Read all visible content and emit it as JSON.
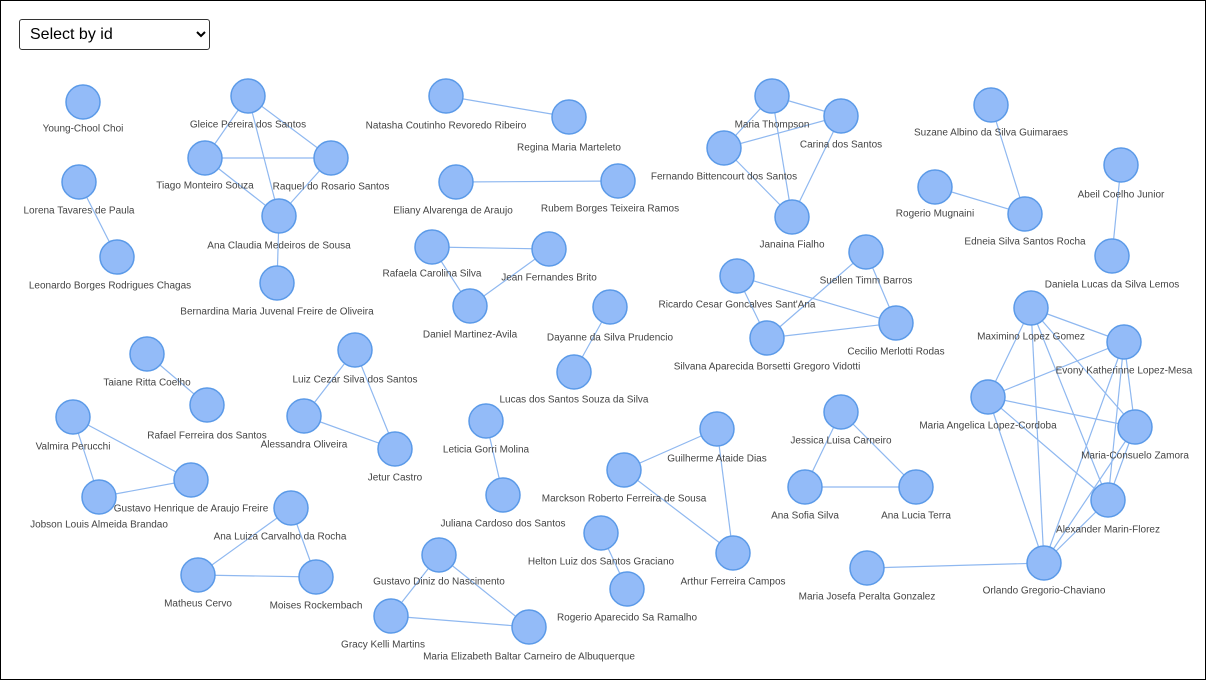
{
  "select": {
    "label": "Select by id"
  },
  "nodes": [
    {
      "label": "Young-Chool Choi"
    },
    {
      "label": "Lorena Tavares de Paula"
    },
    {
      "label": "Leonardo Borges Rodrigues Chagas"
    },
    {
      "label": "Gleice Pereira dos Santos"
    },
    {
      "label": "Tiago Monteiro Souza"
    },
    {
      "label": "Raquel do Rosario Santos"
    },
    {
      "label": "Ana Claudia Medeiros de Sousa"
    },
    {
      "label": "Bernardina Maria Juvenal Freire de Oliveira"
    },
    {
      "label": "Natasha Coutinho Revoredo Ribeiro"
    },
    {
      "label": "Regina Maria Marteleto"
    },
    {
      "label": "Eliany Alvarenga de Araujo"
    },
    {
      "label": "Rubem Borges Teixeira Ramos"
    },
    {
      "label": "Rafaela Carolina Silva"
    },
    {
      "label": "Jean Fernandes Brito"
    },
    {
      "label": "Daniel Martinez-Avila"
    },
    {
      "label": "Dayanne da Silva Prudencio"
    },
    {
      "label": "Lucas dos Santos Souza da Silva"
    },
    {
      "label": "Maria Thompson"
    },
    {
      "label": "Carina dos Santos"
    },
    {
      "label": "Fernando Bittencourt dos Santos"
    },
    {
      "label": "Janaina Fialho"
    },
    {
      "label": "Suzane Albino da Silva Guimaraes"
    },
    {
      "label": "Rogerio Mugnaini"
    },
    {
      "label": "Edneia Silva Santos Rocha"
    },
    {
      "label": "Abeil Coelho Junior"
    },
    {
      "label": "Daniela Lucas da Silva Lemos"
    },
    {
      "label": "Suellen Timm Barros"
    },
    {
      "label": "Ricardo Cesar Goncalves Sant'Ana"
    },
    {
      "label": "Cecilio Merlotti Rodas"
    },
    {
      "label": "Silvana Aparecida Borsetti Gregoro Vidotti"
    },
    {
      "label": "Maximino Lopez Gomez"
    },
    {
      "label": "Evony Katherinne Lopez-Mesa"
    },
    {
      "label": "Maria Angelica Lopez-Cordoba"
    },
    {
      "label": "Maria-Consuelo Zamora"
    },
    {
      "label": "Alexander Marin-Florez"
    },
    {
      "label": "Orlando Gregorio-Chaviano"
    },
    {
      "label": "Maria Josefa Peralta Gonzalez"
    },
    {
      "label": "Taiane Ritta Coelho"
    },
    {
      "label": "Rafael Ferreira dos Santos"
    },
    {
      "label": "Valmira Perucchi"
    },
    {
      "label": "Gustavo Henrique de Araujo Freire"
    },
    {
      "label": "Jobson Louis Almeida Brandao"
    },
    {
      "label": "Luiz Cezar Silva dos Santos"
    },
    {
      "label": "Alessandra Oliveira"
    },
    {
      "label": "Jetur Castro"
    },
    {
      "label": "Leticia Gorri Molina"
    },
    {
      "label": "Juliana Cardoso dos Santos"
    },
    {
      "label": "Ana Luiza Carvalho da Rocha"
    },
    {
      "label": "Matheus Cervo"
    },
    {
      "label": "Moises Rockembach"
    },
    {
      "label": "Gustavo Diniz do Nascimento"
    },
    {
      "label": "Gracy Kelli Martins"
    },
    {
      "label": "Maria Elizabeth Baltar Carneiro de Albuquerque"
    },
    {
      "label": "Guilherme Ataide Dias"
    },
    {
      "label": "Marckson Roberto Ferreira de Sousa"
    },
    {
      "label": "Arthur Ferreira Campos"
    },
    {
      "label": "Helton Luiz dos Santos Graciano"
    },
    {
      "label": "Rogerio Aparecido Sa Ramalho"
    },
    {
      "label": "Jessica Luisa Carneiro"
    },
    {
      "label": "Ana Sofia Silva"
    },
    {
      "label": "Ana Lucia Terra"
    }
  ]
}
